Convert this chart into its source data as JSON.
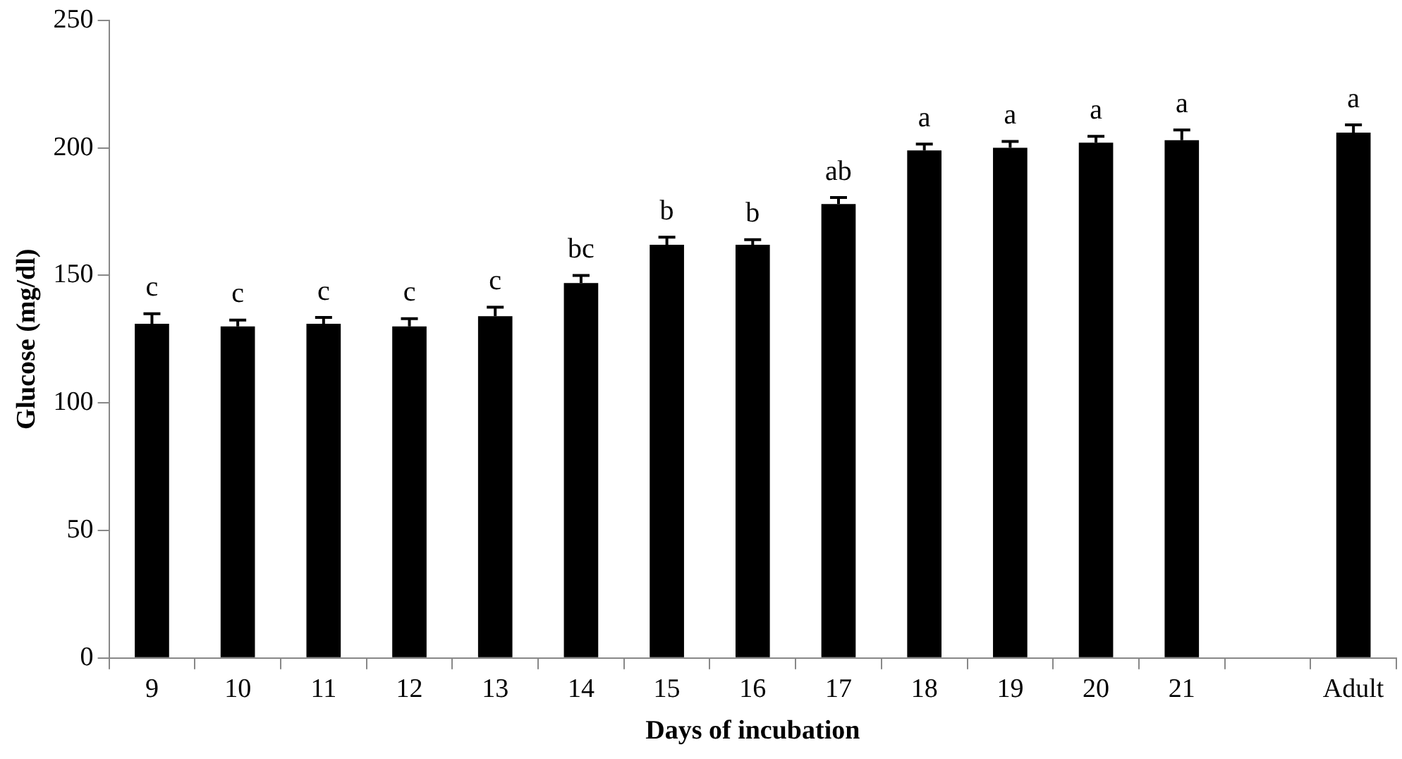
{
  "chart_data": {
    "type": "bar",
    "xlabel": "Days of incubation",
    "ylabel": "Glucose (mg/dl)",
    "categories": [
      "9",
      "10",
      "11",
      "12",
      "13",
      "14",
      "15",
      "16",
      "17",
      "18",
      "19",
      "20",
      "21",
      null,
      "Adult"
    ],
    "values": [
      131,
      130,
      131,
      130,
      134,
      147,
      162,
      162,
      178,
      199,
      200,
      202,
      203,
      null,
      206
    ],
    "errors": [
      4,
      2.5,
      2.5,
      3,
      3.5,
      3,
      3,
      2,
      2.5,
      2.5,
      2.5,
      2.5,
      4,
      null,
      3
    ],
    "color": "#000000",
    "ylim": [
      0,
      250
    ],
    "yticks": [
      0,
      50,
      100,
      150,
      200,
      250
    ],
    "grid": false,
    "legend": false,
    "value_labels": [
      "c",
      "c",
      "c",
      "c",
      "c",
      "bc",
      "b",
      "b",
      "ab",
      "a",
      "a",
      "a",
      "a",
      null,
      "a"
    ]
  }
}
